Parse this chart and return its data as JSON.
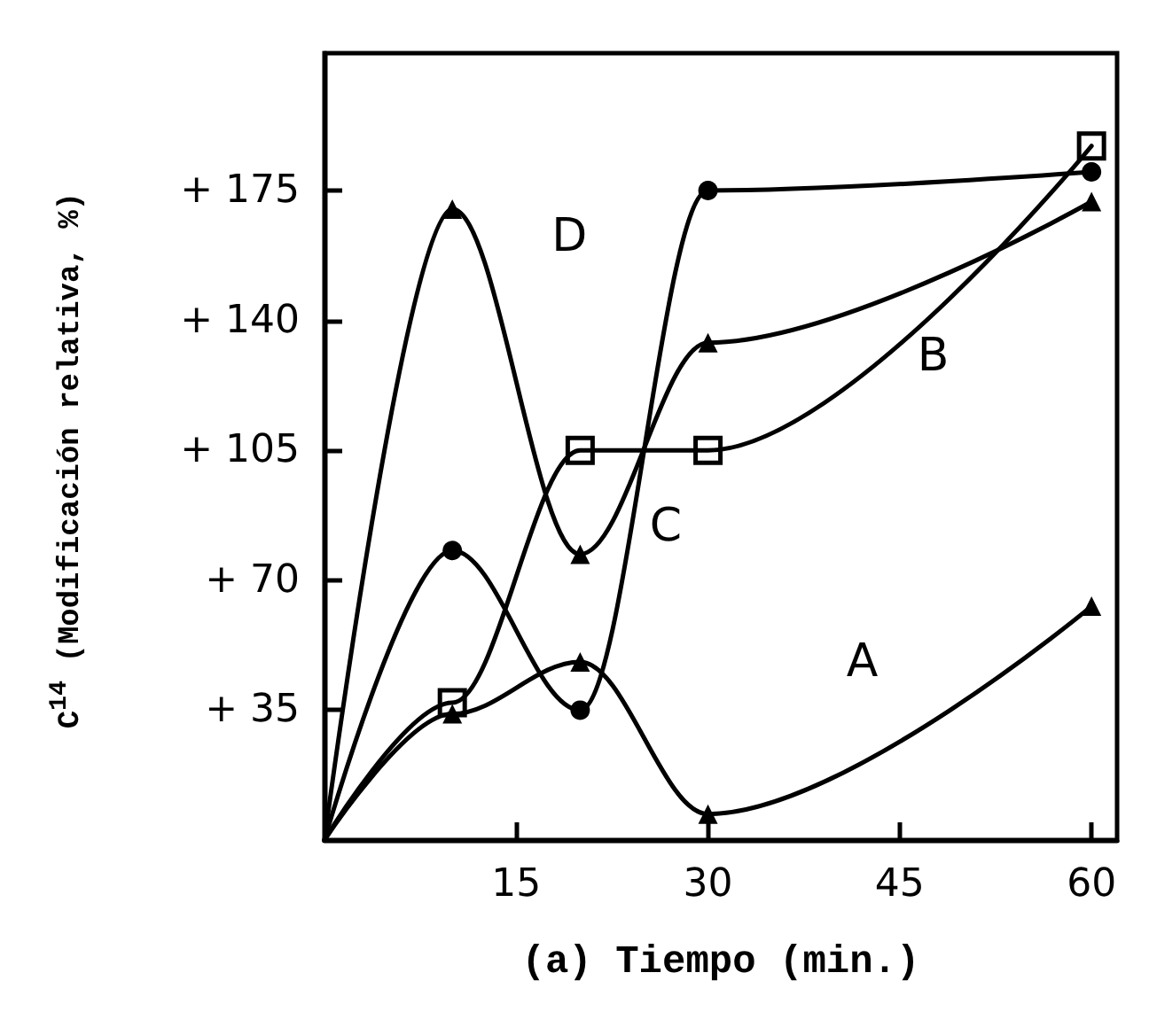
{
  "chart_data": {
    "type": "line",
    "xlabel": "(a) Tiempo (min.)",
    "ylabel": "C$^{14}$ (Modificación relativa, %)",
    "x": [
      0,
      10,
      20,
      30,
      60
    ],
    "series": [
      {
        "name": "A",
        "color": "#000000",
        "marker": "triangle",
        "values": [
          0,
          34,
          48,
          7,
          63
        ]
      },
      {
        "name": "B",
        "color": "#000000",
        "marker": "square",
        "values": [
          0,
          37,
          105,
          105,
          187
        ]
      },
      {
        "name": "C",
        "color": "#000000",
        "marker": "circle",
        "values": [
          0,
          78,
          35,
          175,
          180
        ]
      },
      {
        "name": "D",
        "color": "#000000",
        "marker": "triangle",
        "values": [
          0,
          170,
          77,
          134,
          172
        ]
      }
    ],
    "xlim": [
      0,
      62
    ],
    "xticks": [
      15,
      30,
      45,
      60
    ],
    "ylim": [
      0,
      212
    ],
    "yticks": [
      {
        "value": 35,
        "label": "+ 35"
      },
      {
        "value": 70,
        "label": "+ 70"
      },
      {
        "value": 105,
        "label": "+ 105"
      },
      {
        "value": 140,
        "label": "+ 140"
      },
      {
        "value": 175,
        "label": "+ 175"
      }
    ],
    "grid": false,
    "legend": false,
    "line_style": "solid"
  }
}
